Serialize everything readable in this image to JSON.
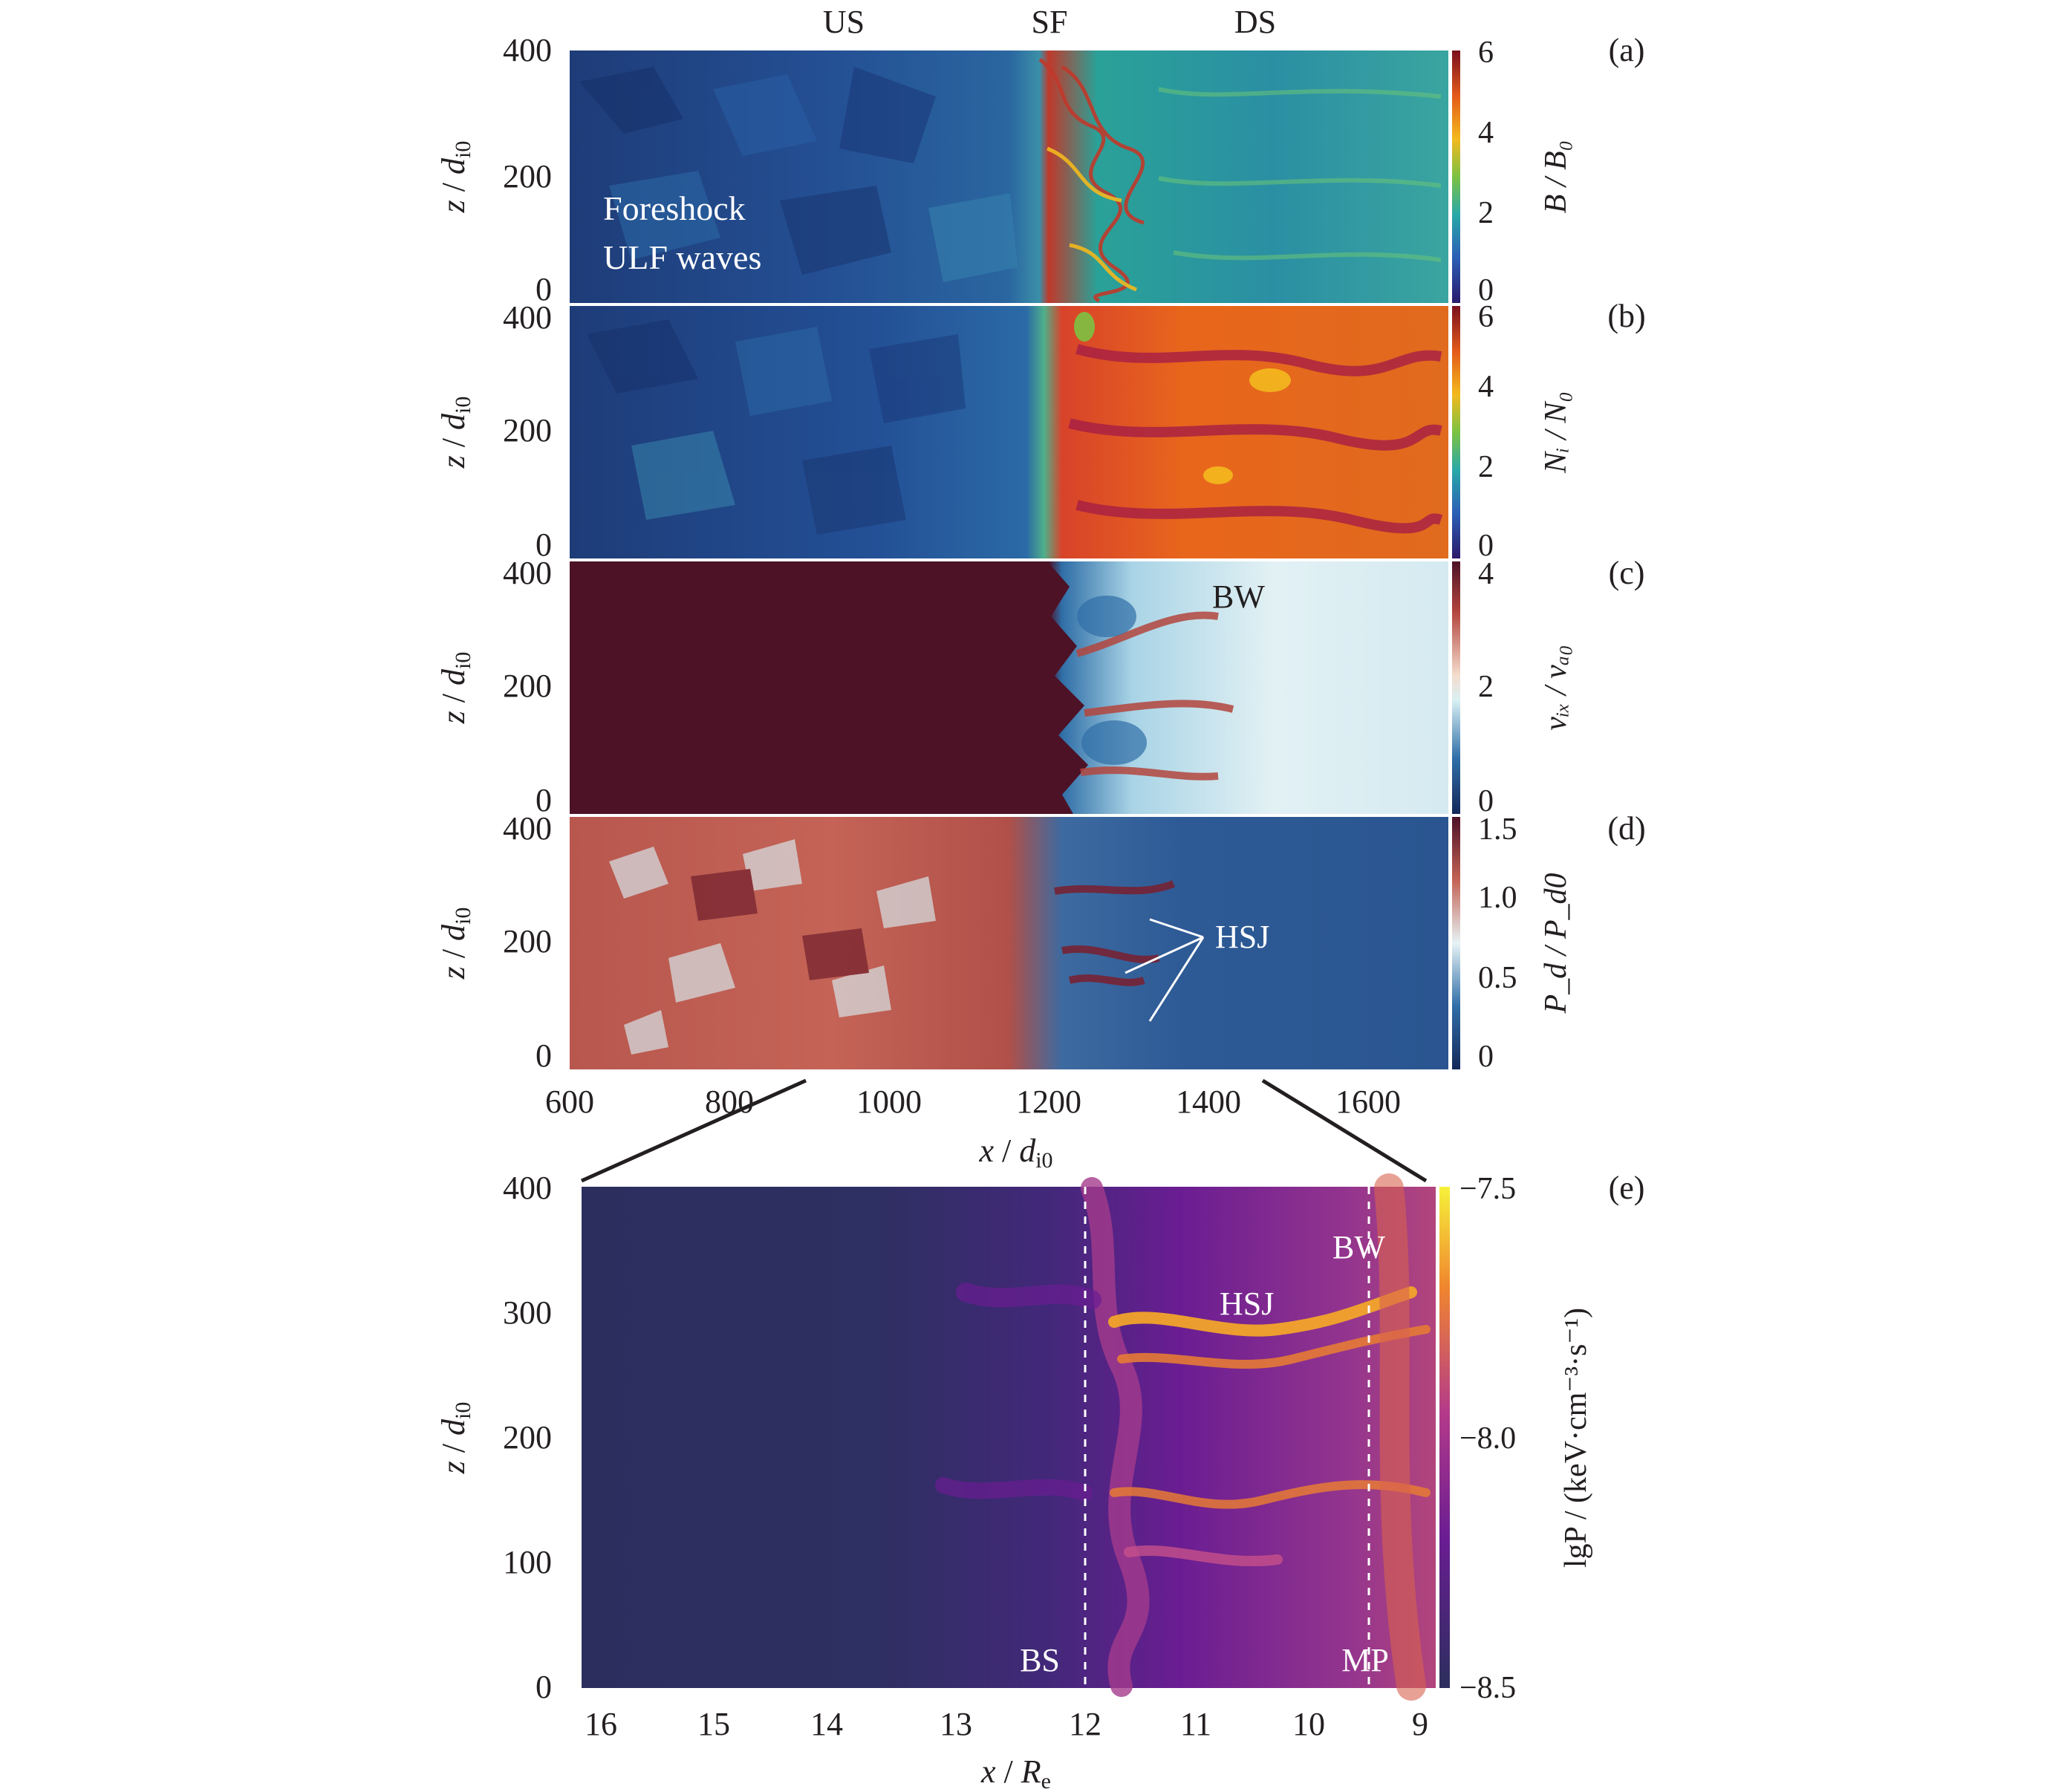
{
  "figure": {
    "region_labels": [
      "US",
      "SF",
      "DS"
    ],
    "x_axis_top": {
      "label_var": "x",
      "label_sep": " / ",
      "label_unit": "d",
      "label_sub": "i0",
      "ticks": [
        600,
        800,
        1000,
        1200,
        1400,
        1600
      ],
      "range": [
        600,
        1700
      ]
    },
    "z_axis": {
      "label_var": "z",
      "label_sep": " / ",
      "label_unit": "d",
      "label_sub": "i0"
    },
    "panels": [
      {
        "tag": "(a)",
        "z_ticks": [
          "400",
          "200",
          "0"
        ],
        "cbar": {
          "ticks": [
            "6",
            "4",
            "2",
            "0"
          ],
          "label": "B / B₀",
          "colormap": "turbo-like"
        },
        "annotations": [
          "Foreshock",
          "ULF waves"
        ]
      },
      {
        "tag": "(b)",
        "z_ticks": [
          "400",
          "200",
          "0"
        ],
        "cbar": {
          "ticks": [
            "6",
            "4",
            "2",
            "0"
          ],
          "label": "Nᵢ / N₀",
          "colormap": "turbo-like"
        }
      },
      {
        "tag": "(c)",
        "z_ticks": [
          "400",
          "200",
          "0"
        ],
        "cbar": {
          "ticks": [
            "4",
            "2",
            "0"
          ],
          "label": "vᵢₓ / vₐ₀",
          "colormap": "diverging"
        },
        "annotations": [
          "BW"
        ]
      },
      {
        "tag": "(d)",
        "z_ticks": [
          "400",
          "200",
          "0"
        ],
        "cbar": {
          "ticks": [
            "1.5",
            "1.0",
            "0.5",
            "0"
          ],
          "label": "P_d / P_d0",
          "colormap": "diverging"
        },
        "annotations": [
          "HSJ"
        ]
      },
      {
        "tag": "(e)",
        "z_ticks": [
          "400",
          "300",
          "200",
          "100",
          "0"
        ],
        "x_ticks": [
          "16",
          "15",
          "14",
          "13",
          "12",
          "11",
          "10",
          "9"
        ],
        "x_label_var": "x",
        "x_label_sep": " / ",
        "x_label_unit": "R",
        "x_label_sub": "e",
        "cbar": {
          "ticks": [
            "−7.5",
            "−8.0",
            "−8.5"
          ],
          "label": "lgP / (keV·cm⁻³·s⁻¹)",
          "colormap": "plasma"
        },
        "annotations": [
          "BW",
          "HSJ",
          "BS",
          "MP"
        ]
      }
    ],
    "colors": {
      "upstream_a": "#1f4e8c",
      "downstream_a": "#2aa198",
      "shock_red": "#c0392b",
      "downstream_b": "#e8661c",
      "panel_c_upstream": "#4d1226",
      "panel_c_downstream": "#d8ecf2",
      "panel_d_upstream": "#b8574e",
      "panel_d_downstream": "#2d5a95",
      "panel_e_background": "#2c2f5e",
      "panel_e_bright": "#f2a42a"
    }
  }
}
